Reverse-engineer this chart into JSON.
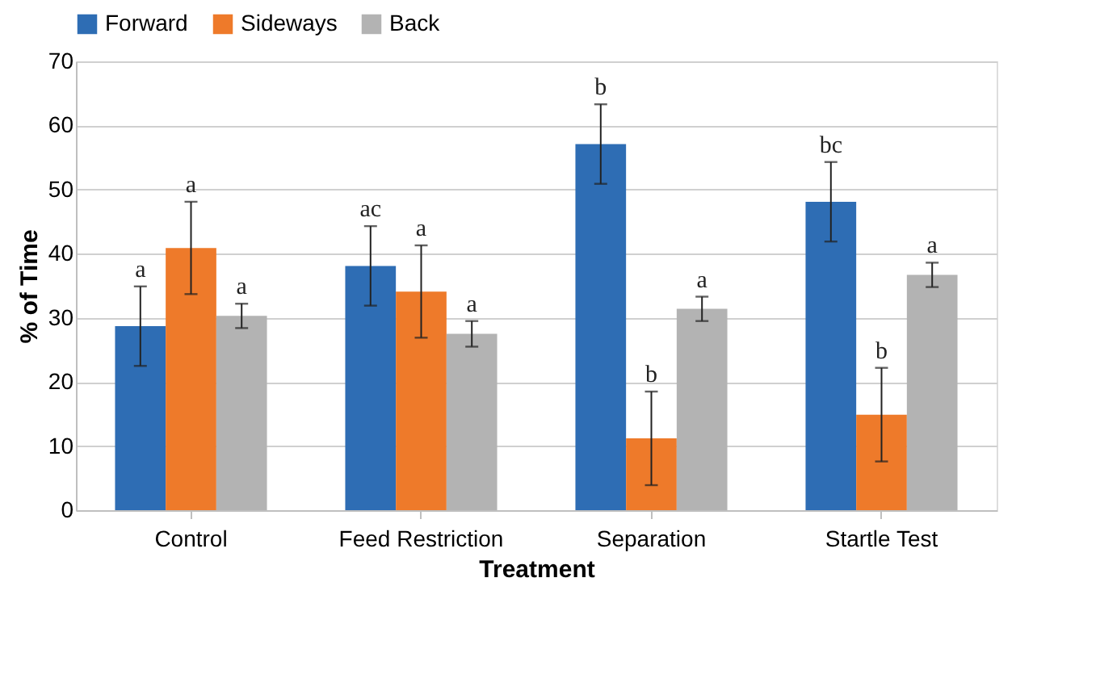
{
  "chart_data": {
    "type": "bar",
    "xlabel": "Treatment",
    "ylabel": "% of Time",
    "categories": [
      "Control",
      "Feed Restriction",
      "Separation",
      "Startle Test"
    ],
    "series": [
      {
        "name": "Forward",
        "color": "#2e6db4",
        "values": [
          28.7,
          38.1,
          57.1,
          48.1
        ],
        "errors": [
          6.2,
          6.2,
          6.2,
          6.2
        ]
      },
      {
        "name": "Sideways",
        "color": "#ee7a2a",
        "values": [
          40.9,
          34.1,
          11.2,
          14.9
        ],
        "errors": [
          7.2,
          7.2,
          7.3,
          7.3
        ]
      },
      {
        "name": "Back",
        "color": "#b3b3b3",
        "values": [
          30.3,
          27.5,
          31.4,
          36.7
        ],
        "errors": [
          1.9,
          2.0,
          1.9,
          1.9
        ]
      }
    ],
    "annotations": [
      "a",
      "a",
      "a",
      "ac",
      "a",
      "a",
      "b",
      "b",
      "a",
      "bc",
      "b",
      "a"
    ],
    "ylim": [
      0,
      70
    ],
    "yticks": [
      0,
      10,
      20,
      30,
      40,
      50,
      60,
      70
    ],
    "grid": "y",
    "legend": "top"
  }
}
